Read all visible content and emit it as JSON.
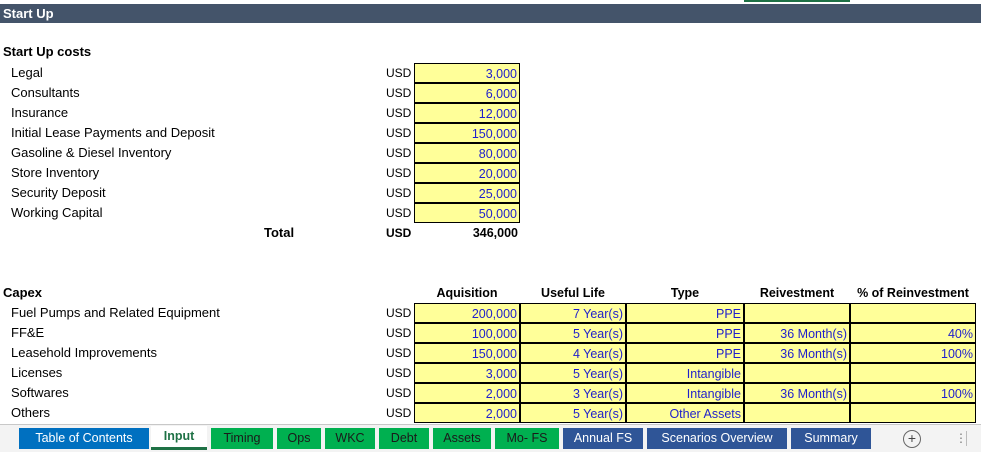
{
  "sheet": {
    "title": "Start Up"
  },
  "startup": {
    "heading": "Start Up costs",
    "items": [
      {
        "label": "Legal",
        "currency": "USD",
        "value": "3,000"
      },
      {
        "label": "Consultants",
        "currency": "USD",
        "value": "6,000"
      },
      {
        "label": "Insurance",
        "currency": "USD",
        "value": "12,000"
      },
      {
        "label": "Initial Lease Payments and Deposit",
        "currency": "USD",
        "value": "150,000"
      },
      {
        "label": "Gasoline & Diesel Inventory",
        "currency": "USD",
        "value": "80,000"
      },
      {
        "label": "Store Inventory",
        "currency": "USD",
        "value": "20,000"
      },
      {
        "label": "Security Deposit",
        "currency": "USD",
        "value": "25,000"
      },
      {
        "label": "Working Capital",
        "currency": "USD",
        "value": "50,000"
      }
    ],
    "total": {
      "label": "Total",
      "currency": "USD",
      "value": "346,000"
    }
  },
  "capex": {
    "heading": "Capex",
    "columns": {
      "acquisition": "Aquisition",
      "useful_life": "Useful Life",
      "type": "Type",
      "reinvestment": "Reivestment",
      "pct": "% of Reinvestment"
    },
    "rows": [
      {
        "label": "Fuel Pumps and Related Equipment",
        "currency": "USD",
        "acquisition": "200,000",
        "useful_life": "7 Year(s)",
        "type": "PPE",
        "reinvestment": "",
        "pct": ""
      },
      {
        "label": "FF&E",
        "currency": "USD",
        "acquisition": "100,000",
        "useful_life": "5 Year(s)",
        "type": "PPE",
        "reinvestment": "36 Month(s)",
        "pct": "40%"
      },
      {
        "label": "Leasehold Improvements",
        "currency": "USD",
        "acquisition": "150,000",
        "useful_life": "4 Year(s)",
        "type": "PPE",
        "reinvestment": "36 Month(s)",
        "pct": "100%"
      },
      {
        "label": "Licenses",
        "currency": "USD",
        "acquisition": "3,000",
        "useful_life": "5 Year(s)",
        "type": "Intangible",
        "reinvestment": "",
        "pct": ""
      },
      {
        "label": "Softwares",
        "currency": "USD",
        "acquisition": "2,000",
        "useful_life": "3 Year(s)",
        "type": "Intangible",
        "reinvestment": "36 Month(s)",
        "pct": "100%"
      },
      {
        "label": "Others",
        "currency": "USD",
        "acquisition": "2,000",
        "useful_life": "5 Year(s)",
        "type": "Other Assets",
        "reinvestment": "",
        "pct": ""
      }
    ]
  },
  "tabs": [
    {
      "label": "Table of Contents",
      "color": "#0070c0"
    },
    {
      "label": "Input",
      "active": true
    },
    {
      "label": "Timing",
      "color": "#00b050"
    },
    {
      "label": "Ops",
      "color": "#00b050"
    },
    {
      "label": "WKC",
      "color": "#00b050"
    },
    {
      "label": "Debt",
      "color": "#00b050"
    },
    {
      "label": "Assets",
      "color": "#00b050"
    },
    {
      "label": "Mo- FS",
      "color": "#00b050"
    },
    {
      "label": "Annual FS",
      "color": "#2f5597"
    },
    {
      "label": "Scenarios Overview",
      "color": "#2f5597"
    },
    {
      "label": "Summary",
      "color": "#2f5597"
    }
  ],
  "icons": {
    "add_sheet": "plus-circle-icon",
    "more": "vertical-dots-icon"
  }
}
